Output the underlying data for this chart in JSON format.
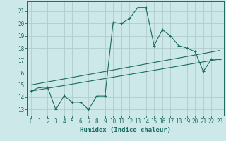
{
  "xlabel": "Humidex (Indice chaleur)",
  "background_color": "#cde8e8",
  "grid_color": "#b0cccc",
  "line_color": "#1a6b60",
  "xlim": [
    -0.5,
    23.5
  ],
  "ylim": [
    12.5,
    21.8
  ],
  "yticks": [
    13,
    14,
    15,
    16,
    17,
    18,
    19,
    20,
    21
  ],
  "xticks": [
    0,
    1,
    2,
    3,
    4,
    5,
    6,
    7,
    8,
    9,
    10,
    11,
    12,
    13,
    14,
    15,
    16,
    17,
    18,
    19,
    20,
    21,
    22,
    23
  ],
  "series1_x": [
    0,
    1,
    2,
    3,
    4,
    5,
    6,
    7,
    8,
    9,
    10,
    11,
    12,
    13,
    14,
    15,
    16,
    17,
    18,
    19,
    20,
    21,
    22,
    23
  ],
  "series1_y": [
    14.5,
    14.8,
    14.8,
    13.0,
    14.1,
    13.6,
    13.6,
    13.0,
    14.1,
    14.1,
    20.1,
    20.0,
    20.4,
    21.3,
    21.3,
    18.2,
    19.5,
    19.0,
    18.2,
    18.0,
    17.7,
    16.1,
    17.1,
    17.1
  ],
  "series2_x": [
    0,
    23
  ],
  "series2_y": [
    14.5,
    17.1
  ],
  "series3_x": [
    0,
    23
  ],
  "series3_y": [
    15.0,
    17.8
  ]
}
